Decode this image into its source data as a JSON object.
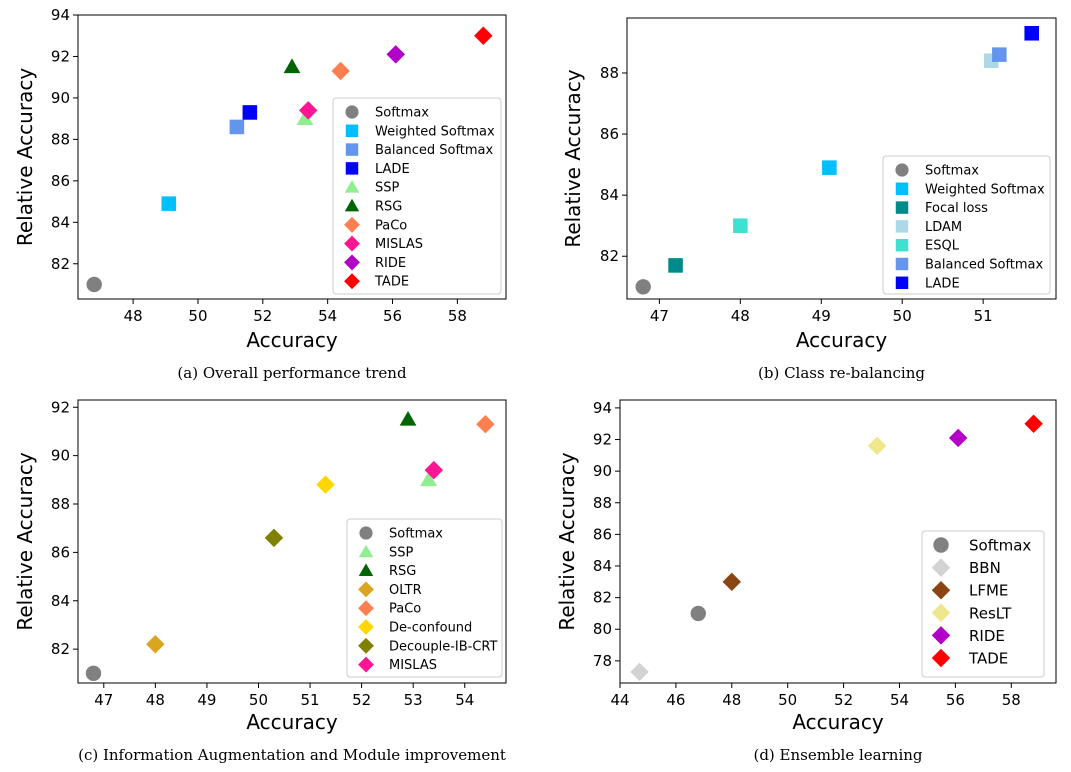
{
  "chart_data": [
    {
      "type": "scatter",
      "caption": "(a) Overall performance trend",
      "xlabel": "Accuracy",
      "ylabel": "Relative Accuracy",
      "xlim": [
        46.3,
        59.5
      ],
      "ylim": [
        80.3,
        94.0
      ],
      "xticks": [
        48,
        50,
        52,
        54,
        56,
        58
      ],
      "yticks": [
        82,
        84,
        86,
        88,
        90,
        92,
        94
      ],
      "legend_position": "lower-right",
      "series": [
        {
          "name": "Softmax",
          "marker": "circle",
          "color": "#808080",
          "x": 46.8,
          "y": 81.0
        },
        {
          "name": "Weighted Softmax",
          "marker": "square",
          "color": "#00bfff",
          "x": 49.1,
          "y": 84.9
        },
        {
          "name": "Balanced Softmax",
          "marker": "square",
          "color": "#6495ed",
          "x": 51.2,
          "y": 88.6
        },
        {
          "name": "LADE",
          "marker": "square",
          "color": "#0000ff",
          "x": 51.6,
          "y": 89.3
        },
        {
          "name": "SSP",
          "marker": "triangle",
          "color": "#90ee90",
          "x": 53.3,
          "y": 89.0
        },
        {
          "name": "RSG",
          "marker": "triangle",
          "color": "#006400",
          "x": 52.9,
          "y": 91.5
        },
        {
          "name": "PaCo",
          "marker": "diamond",
          "color": "#ff7f50",
          "x": 54.4,
          "y": 91.3
        },
        {
          "name": "MISLAS",
          "marker": "diamond",
          "color": "#ff1493",
          "x": 53.4,
          "y": 89.4
        },
        {
          "name": "RIDE",
          "marker": "diamond",
          "color": "#b300c8",
          "x": 56.1,
          "y": 92.1
        },
        {
          "name": "TADE",
          "marker": "diamond",
          "color": "#ff0000",
          "x": 58.8,
          "y": 93.0
        }
      ]
    },
    {
      "type": "scatter",
      "caption": "(b) Class re-balancing",
      "xlabel": "Accuracy",
      "ylabel": "Relative Accuracy",
      "xlim": [
        46.6,
        51.9
      ],
      "ylim": [
        80.6,
        89.8
      ],
      "xticks": [
        47,
        48,
        49,
        50,
        51
      ],
      "yticks": [
        82,
        84,
        86,
        88
      ],
      "legend_position": "lower-right",
      "series": [
        {
          "name": "Softmax",
          "marker": "circle",
          "color": "#808080",
          "x": 46.8,
          "y": 81.0
        },
        {
          "name": "Weighted Softmax",
          "marker": "square",
          "color": "#00bfff",
          "x": 49.1,
          "y": 84.9
        },
        {
          "name": "Focal loss",
          "marker": "square",
          "color": "#008b8b",
          "x": 47.2,
          "y": 81.7
        },
        {
          "name": "LDAM",
          "marker": "square",
          "color": "#add8e6",
          "x": 51.1,
          "y": 88.4
        },
        {
          "name": "ESQL",
          "marker": "square",
          "color": "#40e0d0",
          "x": 48.0,
          "y": 83.0
        },
        {
          "name": "Balanced Softmax",
          "marker": "square",
          "color": "#6495ed",
          "x": 51.2,
          "y": 88.6
        },
        {
          "name": "LADE",
          "marker": "square",
          "color": "#0000ff",
          "x": 51.6,
          "y": 89.3
        }
      ]
    },
    {
      "type": "scatter",
      "caption": "(c) Information Augmentation and Module improvement",
      "xlabel": "Accuracy",
      "ylabel": "Relative Accuracy",
      "xlim": [
        46.5,
        54.8
      ],
      "ylim": [
        80.6,
        92.3
      ],
      "xticks": [
        47,
        48,
        49,
        50,
        51,
        52,
        53,
        54
      ],
      "yticks": [
        82,
        84,
        86,
        88,
        90,
        92
      ],
      "legend_position": "lower-right",
      "series": [
        {
          "name": "Softmax",
          "marker": "circle",
          "color": "#808080",
          "x": 46.8,
          "y": 81.0
        },
        {
          "name": "SSP",
          "marker": "triangle",
          "color": "#90ee90",
          "x": 53.3,
          "y": 89.0
        },
        {
          "name": "RSG",
          "marker": "triangle",
          "color": "#006400",
          "x": 52.9,
          "y": 91.5
        },
        {
          "name": "OLTR",
          "marker": "diamond",
          "color": "#daa520",
          "x": 48.0,
          "y": 82.2
        },
        {
          "name": "PaCo",
          "marker": "diamond",
          "color": "#ff7f50",
          "x": 54.4,
          "y": 91.3
        },
        {
          "name": "De-confound",
          "marker": "diamond",
          "color": "#ffd700",
          "x": 51.3,
          "y": 88.8
        },
        {
          "name": "Decouple-IB-CRT",
          "marker": "diamond",
          "color": "#808000",
          "x": 50.3,
          "y": 86.6
        },
        {
          "name": "MISLAS",
          "marker": "diamond",
          "color": "#ff1493",
          "x": 53.4,
          "y": 89.4
        }
      ]
    },
    {
      "type": "scatter",
      "caption": "(d) Ensemble learning",
      "xlabel": "Accuracy",
      "ylabel": "Relative Accuracy",
      "xlim": [
        44.0,
        59.6
      ],
      "ylim": [
        76.6,
        94.5
      ],
      "xticks": [
        44,
        46,
        48,
        50,
        52,
        54,
        56,
        58
      ],
      "yticks": [
        78,
        80,
        82,
        84,
        86,
        88,
        90,
        92,
        94
      ],
      "legend_position": "lower-right",
      "series": [
        {
          "name": "Softmax",
          "marker": "circle",
          "color": "#808080",
          "x": 46.8,
          "y": 81.0
        },
        {
          "name": "BBN",
          "marker": "diamond",
          "color": "#d3d3d3",
          "x": 44.7,
          "y": 77.3
        },
        {
          "name": "LFME",
          "marker": "diamond",
          "color": "#8b4513",
          "x": 48.0,
          "y": 83.0
        },
        {
          "name": "ResLT",
          "marker": "diamond",
          "color": "#f0e68c",
          "x": 53.2,
          "y": 91.6
        },
        {
          "name": "RIDE",
          "marker": "diamond",
          "color": "#b300c8",
          "x": 56.1,
          "y": 92.1
        },
        {
          "name": "TADE",
          "marker": "diamond",
          "color": "#ff0000",
          "x": 58.8,
          "y": 93.0
        }
      ]
    }
  ]
}
